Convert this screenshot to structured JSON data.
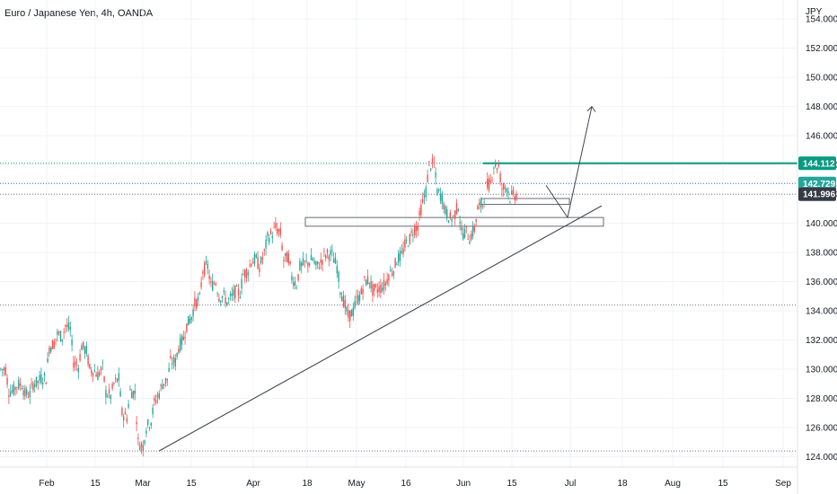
{
  "chart_data": {
    "type": "candlestick",
    "title": "Euro / Japanese Yen, 4h, OANDA",
    "currency_label": "JPY",
    "y_ticks": [
      "154.000",
      "152.000",
      "150.000",
      "148.000",
      "146.000",
      "144.000",
      "142.000",
      "140.000",
      "138.000",
      "136.000",
      "134.000",
      "132.000",
      "130.000",
      "128.000",
      "126.000",
      "124.000"
    ],
    "x_ticks": [
      "Feb",
      "15",
      "Mar",
      "15",
      "Apr",
      "18",
      "May",
      "16",
      "Jun",
      "15",
      "Jul",
      "18",
      "Aug",
      "15",
      "Sep"
    ],
    "ylim": [
      123.3,
      155.3
    ],
    "price_tags": [
      {
        "label": "144.112",
        "value": 144.112,
        "color": "#089981"
      },
      {
        "label": "142.729",
        "value": 142.729,
        "color": "#26a69a"
      },
      {
        "label": "141.996",
        "value": 141.996,
        "color": "#363a45"
      }
    ],
    "up_color": "#26a69a",
    "down_color": "#ef5350",
    "price_path": [
      [
        130.0,
        130.0
      ],
      [
        128.5,
        128.6
      ],
      [
        128.9,
        129.0
      ],
      [
        128.3,
        128.3
      ],
      [
        129.0,
        129.2
      ],
      [
        129.4,
        129.4
      ],
      [
        131.5,
        132.0
      ],
      [
        132.4,
        132.1
      ],
      [
        133.0,
        132.5
      ],
      [
        130.5,
        130.0
      ],
      [
        131.6,
        131.0
      ],
      [
        130.0,
        129.8
      ],
      [
        129.6,
        130.4
      ],
      [
        128.4,
        128.0
      ],
      [
        129.0,
        129.6
      ],
      [
        127.0,
        126.5
      ],
      [
        128.5,
        128.3
      ],
      [
        125.0,
        124.5
      ],
      [
        126.0,
        126.8
      ],
      [
        127.7,
        128.8
      ],
      [
        129.0,
        129.5
      ],
      [
        130.5,
        130.5
      ],
      [
        131.5,
        132.5
      ],
      [
        133.0,
        134.0
      ],
      [
        134.5,
        135.0
      ],
      [
        136.8,
        137.2
      ],
      [
        135.7,
        136.2
      ],
      [
        135.0,
        135.0
      ],
      [
        134.6,
        135.2
      ],
      [
        135.3,
        135.2
      ],
      [
        136.5,
        137.0
      ],
      [
        137.4,
        137.6
      ],
      [
        137.0,
        138.6
      ],
      [
        139.0,
        139.5
      ],
      [
        139.7,
        139.0
      ],
      [
        137.5,
        137.8
      ],
      [
        136.3,
        135.5
      ],
      [
        137.0,
        137.4
      ],
      [
        137.3,
        137.7
      ],
      [
        137.0,
        137.5
      ],
      [
        137.8,
        138.0
      ],
      [
        137.8,
        136.5
      ],
      [
        135.5,
        133.5
      ],
      [
        133.6,
        134.2
      ],
      [
        134.7,
        135.5
      ],
      [
        136.0,
        136.2
      ],
      [
        135.4,
        135.5
      ],
      [
        135.6,
        136.0
      ],
      [
        136.5,
        137.1
      ],
      [
        137.5,
        138.0
      ],
      [
        138.5,
        139.2
      ],
      [
        139.5,
        140.1
      ],
      [
        141.0,
        143.0
      ],
      [
        144.0,
        144.0
      ],
      [
        142.2,
        141.5
      ],
      [
        140.8,
        140.0
      ],
      [
        140.4,
        141.8
      ],
      [
        139.3,
        139.5
      ],
      [
        139.0,
        140.0
      ],
      [
        141.0,
        141.5
      ],
      [
        142.5,
        143.0
      ],
      [
        144.0,
        143.8
      ],
      [
        142.4,
        142.6
      ],
      [
        141.8,
        142.0
      ]
    ],
    "arrow_path": [
      142.6,
      141.0,
      140.4,
      148.0
    ],
    "trendline_values": [
      124.4,
      141.2
    ],
    "horizontal_levels": [
      144.112,
      142.729,
      141.996,
      134.4,
      124.4
    ],
    "zones": [
      [
        139.8,
        140.4
      ],
      [
        141.3,
        141.7
      ]
    ]
  }
}
